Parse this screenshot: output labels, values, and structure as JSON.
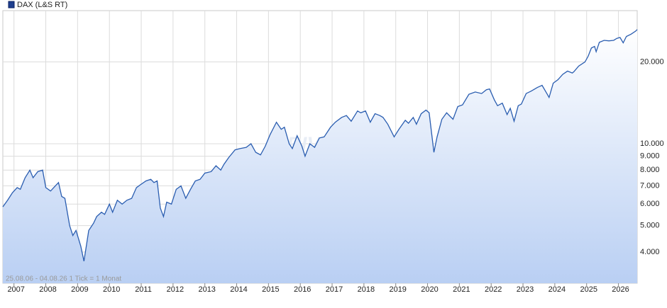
{
  "chart_data": {
    "type": "line",
    "title": "DAX (L&S RT)",
    "subtitle": "25.08.06 - 04.08.26   1 Tick = 1 Monat",
    "watermark": "ARIVA.DE",
    "log_scale": true,
    "grid": true,
    "fill_area": true,
    "color": "#2a5db0",
    "xlim": [
      2006.65,
      2026.59
    ],
    "xticks": [
      2007,
      2008,
      2009,
      2010,
      2011,
      2012,
      2013,
      2014,
      2015,
      2016,
      2017,
      2018,
      2019,
      2020,
      2021,
      2022,
      2023,
      2024,
      2025,
      2026
    ],
    "ylim": [
      3070,
      30870
    ],
    "yticks": [
      {
        "value": 4000,
        "label": "4.000"
      },
      {
        "value": 5000,
        "label": "5.000"
      },
      {
        "value": 6000,
        "label": "6.000"
      },
      {
        "value": 7000,
        "label": "7.000"
      },
      {
        "value": 8000,
        "label": "8.000"
      },
      {
        "value": 9000,
        "label": "9.000"
      },
      {
        "value": 10000,
        "label": "10.000"
      },
      {
        "value": 20000,
        "label": "20.000"
      }
    ],
    "x": [
      2006.65,
      2006.8,
      2006.95,
      2007.1,
      2007.2,
      2007.35,
      2007.5,
      2007.6,
      2007.75,
      2007.9,
      2008.0,
      2008.15,
      2008.3,
      2008.4,
      2008.5,
      2008.6,
      2008.75,
      2008.85,
      2008.95,
      2009.1,
      2009.2,
      2009.35,
      2009.5,
      2009.6,
      2009.75,
      2009.85,
      2010.0,
      2010.1,
      2010.25,
      2010.4,
      2010.55,
      2010.7,
      2010.85,
      2011.0,
      2011.15,
      2011.3,
      2011.4,
      2011.5,
      2011.6,
      2011.7,
      2011.8,
      2011.95,
      2012.1,
      2012.25,
      2012.4,
      2012.55,
      2012.7,
      2012.85,
      2013.0,
      2013.2,
      2013.35,
      2013.5,
      2013.6,
      2013.75,
      2013.95,
      2014.1,
      2014.3,
      2014.45,
      2014.6,
      2014.75,
      2014.9,
      2015.05,
      2015.25,
      2015.4,
      2015.5,
      2015.65,
      2015.75,
      2015.9,
      2016.05,
      2016.15,
      2016.3,
      2016.45,
      2016.6,
      2016.75,
      2016.95,
      2017.1,
      2017.3,
      2017.45,
      2017.6,
      2017.8,
      2017.9,
      2018.05,
      2018.2,
      2018.35,
      2018.5,
      2018.6,
      2018.75,
      2018.95,
      2019.1,
      2019.3,
      2019.4,
      2019.55,
      2019.65,
      2019.8,
      2019.95,
      2020.05,
      2020.2,
      2020.3,
      2020.45,
      2020.6,
      2020.8,
      2020.95,
      2021.1,
      2021.3,
      2021.5,
      2021.7,
      2021.85,
      2021.95,
      2022.1,
      2022.2,
      2022.35,
      2022.5,
      2022.6,
      2022.72,
      2022.85,
      2022.95,
      2023.1,
      2023.25,
      2023.45,
      2023.6,
      2023.75,
      2023.82,
      2023.95,
      2024.1,
      2024.25,
      2024.4,
      2024.55,
      2024.6,
      2024.75,
      2024.95,
      2025.05,
      2025.15,
      2025.25,
      2025.3,
      2025.4,
      2025.55,
      2025.7,
      2025.85,
      2025.95,
      2026.05,
      2026.15,
      2026.25,
      2026.4,
      2026.55,
      2026.59
    ],
    "series": [
      {
        "name": "DAX (L&S RT)",
        "color": "#2a5db0",
        "values": [
          5860,
          6200,
          6600,
          6900,
          6800,
          7500,
          8000,
          7500,
          7900,
          8000,
          6900,
          6700,
          7000,
          7200,
          6400,
          6300,
          5000,
          4600,
          4800,
          4200,
          3700,
          4800,
          5100,
          5400,
          5600,
          5500,
          6000,
          5600,
          6200,
          6000,
          6200,
          6300,
          6900,
          7100,
          7300,
          7400,
          7200,
          7300,
          5800,
          5400,
          6100,
          6000,
          6800,
          7000,
          6300,
          6800,
          7300,
          7400,
          7800,
          7900,
          8300,
          8000,
          8400,
          8900,
          9500,
          9600,
          9700,
          10000,
          9300,
          9100,
          9800,
          10800,
          12000,
          11300,
          11500,
          10000,
          9600,
          10700,
          9800,
          9000,
          10000,
          9700,
          10500,
          10600,
          11500,
          12000,
          12500,
          12700,
          12100,
          13200,
          13000,
          13200,
          12000,
          12900,
          12700,
          12500,
          11800,
          10600,
          11300,
          12200,
          11900,
          12500,
          11800,
          12900,
          13300,
          13000,
          9300,
          10600,
          12300,
          13000,
          12300,
          13700,
          13900,
          15200,
          15500,
          15300,
          15800,
          15900,
          14500,
          13800,
          14100,
          12800,
          13500,
          12100,
          13800,
          14000,
          15300,
          15600,
          16100,
          16400,
          15300,
          14800,
          16700,
          17200,
          18000,
          18500,
          18200,
          18400,
          19300,
          20000,
          21000,
          22500,
          22800,
          21800,
          23600,
          24000,
          23900,
          24000,
          24400,
          24600,
          23500,
          24800,
          25300,
          26000,
          26300
        ]
      }
    ]
  }
}
